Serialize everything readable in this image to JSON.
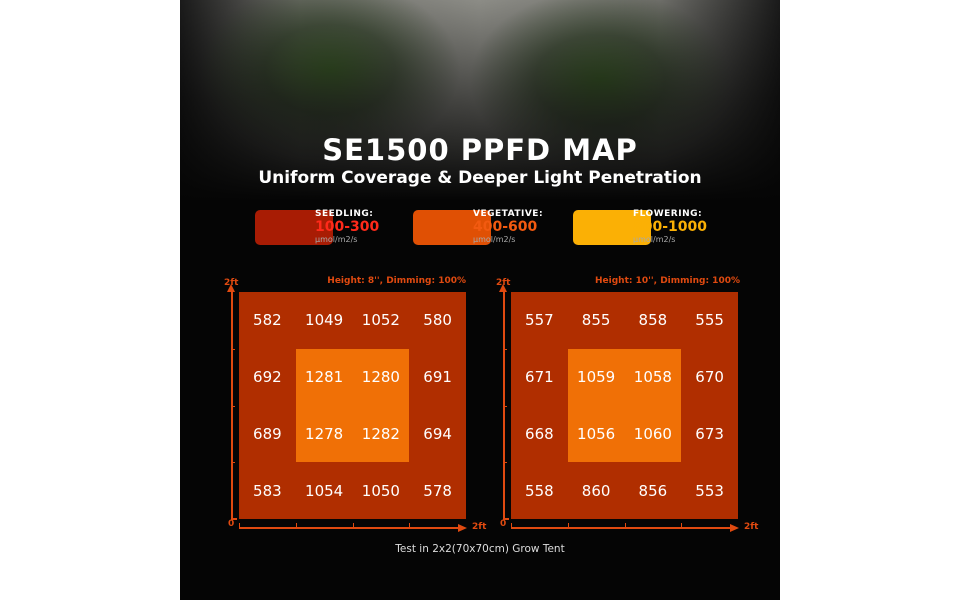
{
  "title": "SE1500 PPFD MAP",
  "subtitle": "Uniform Coverage & Deeper Light Penetration",
  "legend": [
    {
      "name": "SEEDLING:",
      "range": "100-300",
      "unit": "μmol/m2/s",
      "color": "#a81c04",
      "text_color": "#ff2a1a"
    },
    {
      "name": "VEGETATIVE:",
      "range": "400-600",
      "unit": "μmol/m2/s",
      "color": "#e05004",
      "text_color": "#f25a10"
    },
    {
      "name": "FLOWERING:",
      "range": "800-1000",
      "unit": "μmol/m2/s",
      "color": "#fbb005",
      "text_color": "#fbb005"
    }
  ],
  "footnote": "Test in 2x2(70x70cm) Grow Tent",
  "chart_data": [
    {
      "type": "heatmap",
      "title": "Height: 8'', Dimming: 100%",
      "x_axis": {
        "start_label": "0",
        "end_label": "2ft"
      },
      "y_axis": {
        "end_label": "2ft"
      },
      "values": [
        [
          582,
          1049,
          1052,
          580
        ],
        [
          692,
          1281,
          1280,
          691
        ],
        [
          689,
          1278,
          1282,
          694
        ],
        [
          583,
          1054,
          1050,
          578
        ]
      ]
    },
    {
      "type": "heatmap",
      "title": "Height: 10'', Dimming: 100%",
      "x_axis": {
        "start_label": "0",
        "end_label": "2ft"
      },
      "y_axis": {
        "end_label": "2ft"
      },
      "values": [
        [
          557,
          855,
          858,
          555
        ],
        [
          671,
          1059,
          1058,
          670
        ],
        [
          668,
          1056,
          1060,
          673
        ],
        [
          558,
          860,
          856,
          553
        ]
      ]
    }
  ]
}
